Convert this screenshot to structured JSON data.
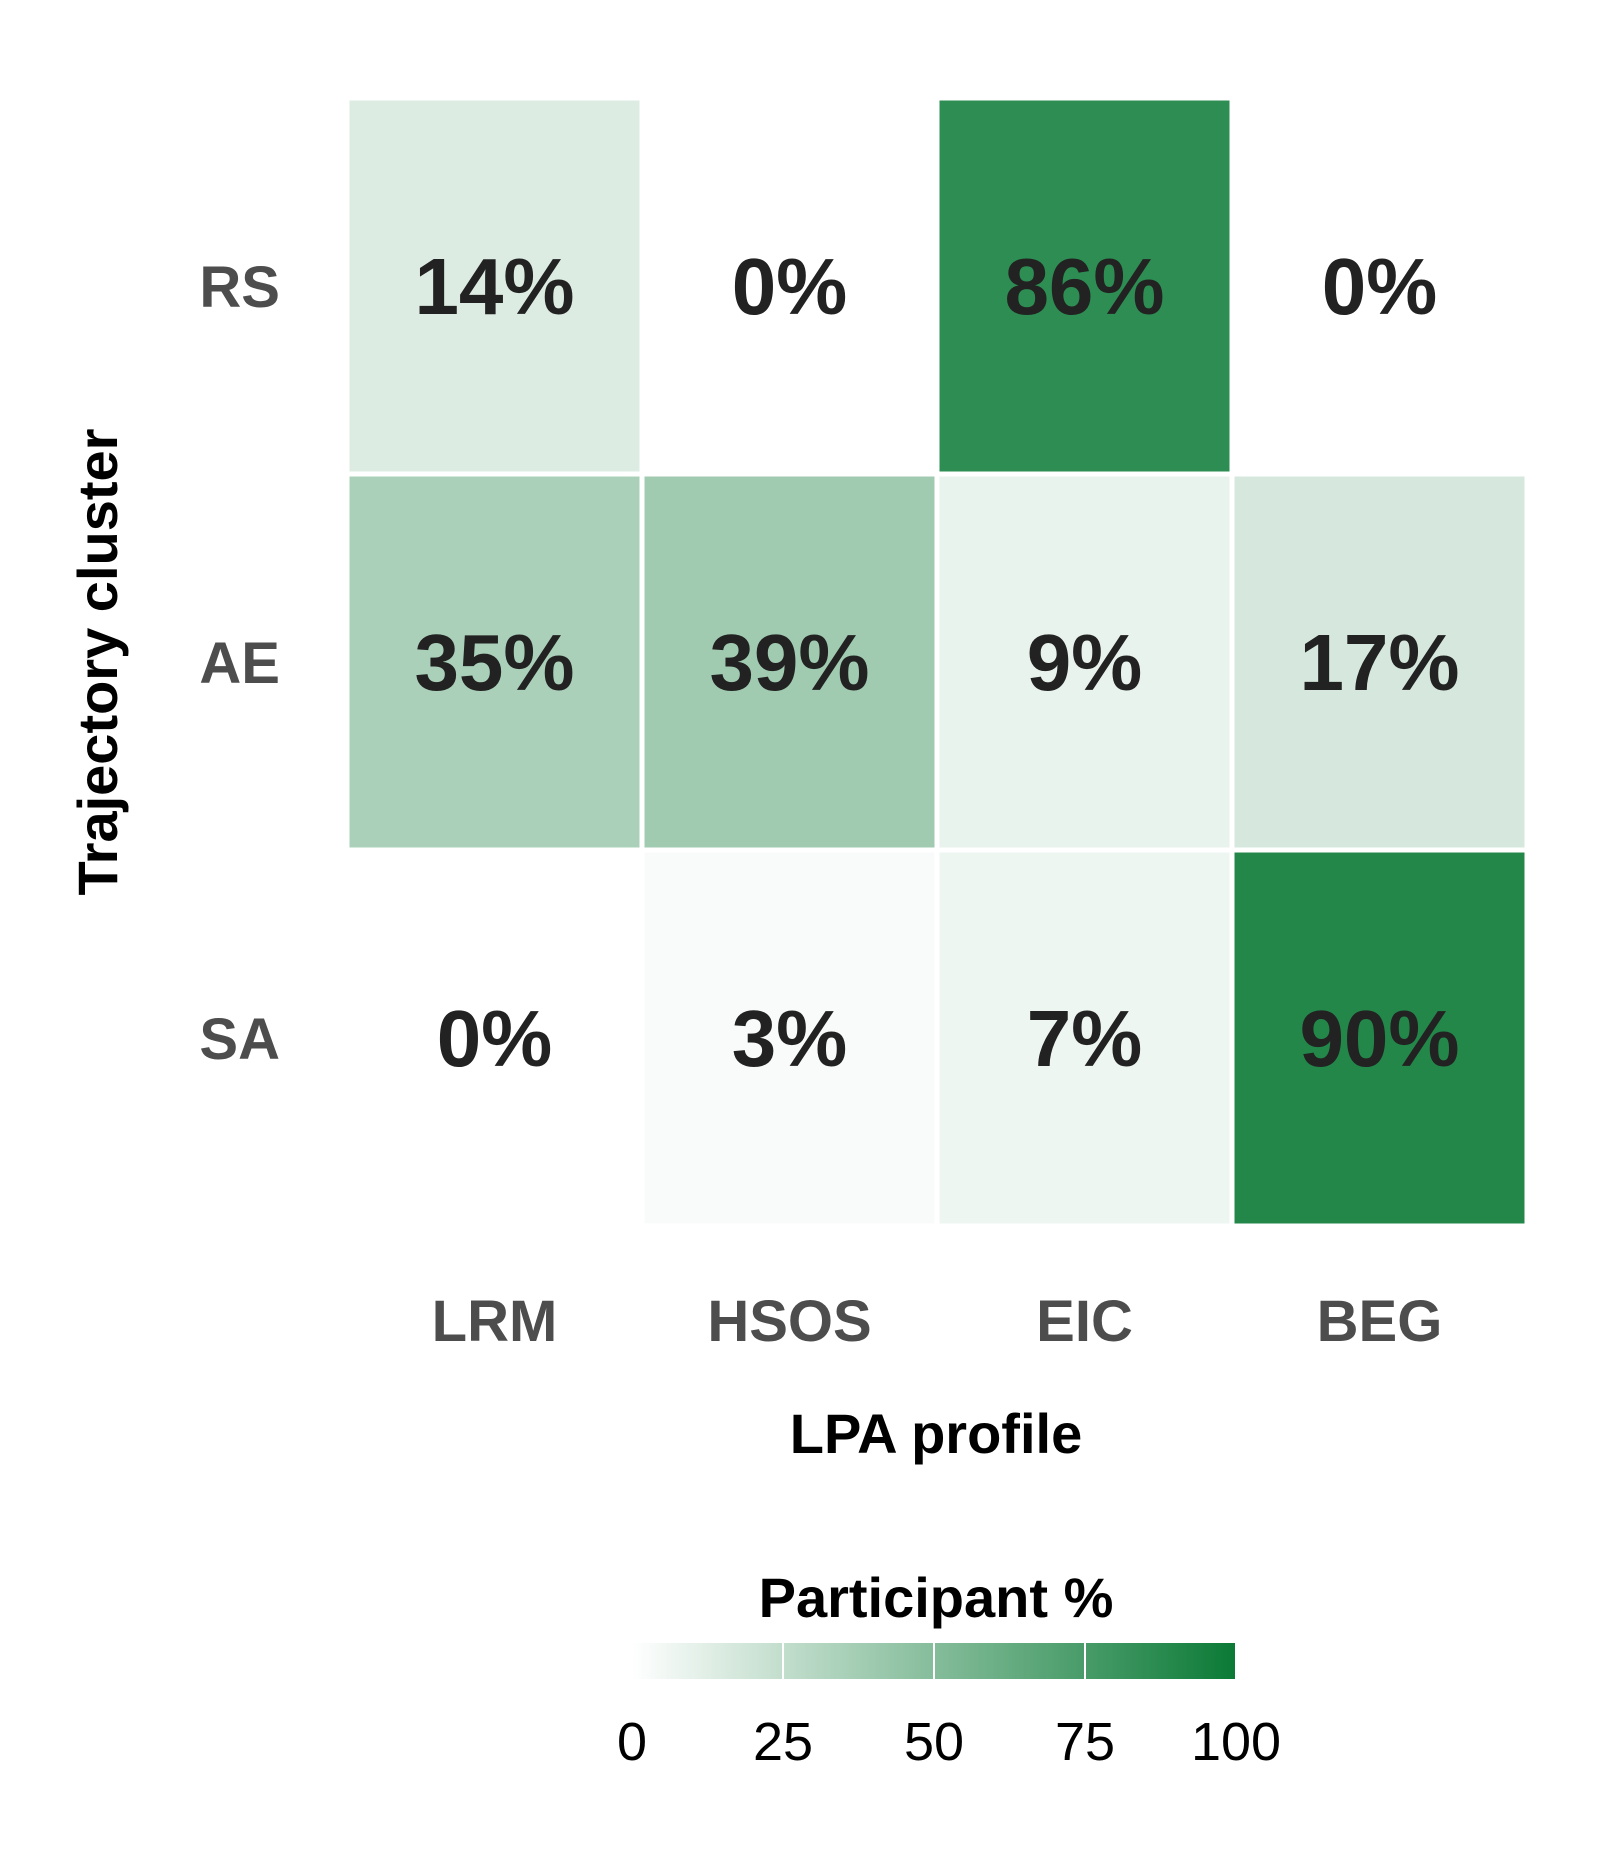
{
  "chart_data": {
    "type": "heatmap",
    "xlabel": "LPA profile",
    "ylabel": "Trajectory cluster",
    "x_categories": [
      "LRM",
      "HSOS",
      "EIC",
      "BEG"
    ],
    "y_categories": [
      "RS",
      "AE",
      "SA"
    ],
    "values": [
      [
        14,
        0,
        86,
        0
      ],
      [
        35,
        39,
        9,
        17
      ],
      [
        0,
        3,
        7,
        90
      ]
    ],
    "cell_labels": [
      [
        "14%",
        "0%",
        "86%",
        "0%"
      ],
      [
        "35%",
        "39%",
        "9%",
        "17%"
      ],
      [
        "0%",
        "3%",
        "7%",
        "90%"
      ]
    ],
    "legend": {
      "title": "Participant %",
      "range": [
        0,
        100
      ],
      "ticks": [
        0,
        25,
        50,
        75,
        100
      ],
      "tick_labels": [
        "0",
        "25",
        "50",
        "75",
        "100"
      ],
      "color_low": "#ffffff",
      "color_high": "#0b7a36"
    }
  }
}
